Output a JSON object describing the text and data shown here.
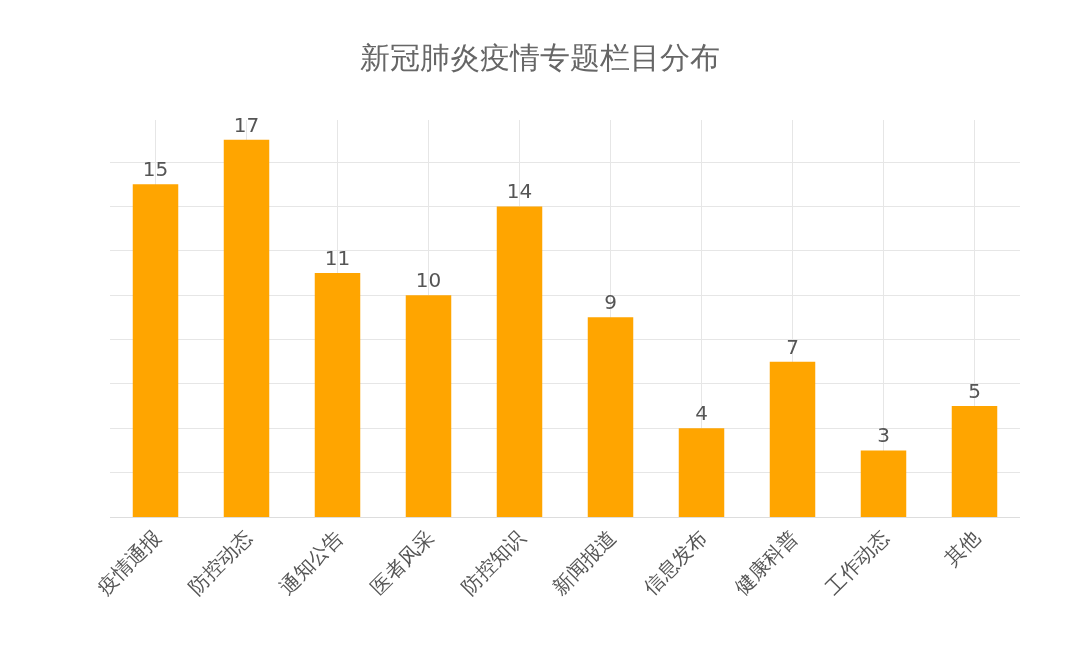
{
  "chart_data": {
    "type": "bar",
    "title": "新冠肺炎疫情专题栏目分布",
    "categories": [
      "疫情通报",
      "防控动态",
      "通知公告",
      "医者风采",
      "防控知识",
      "新闻报道",
      "信息发布",
      "健康科普",
      "工作动态",
      "其他"
    ],
    "values": [
      15,
      17,
      11,
      10,
      14,
      9,
      4,
      7,
      3,
      5
    ],
    "color": "#ffa500",
    "data_labels": true,
    "grid": true
  }
}
